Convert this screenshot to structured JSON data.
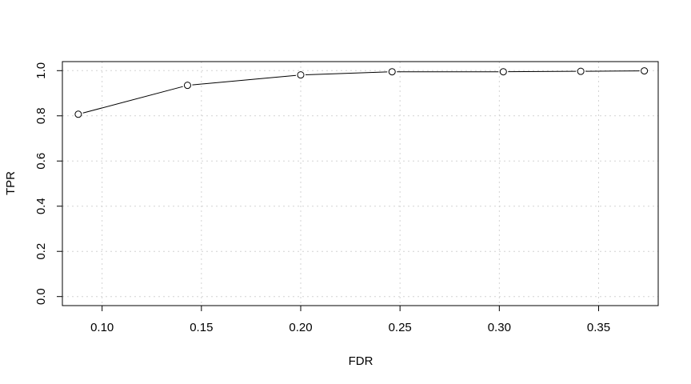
{
  "chart_data": {
    "type": "line",
    "title": "",
    "xlabel": "FDR",
    "ylabel": "TPR",
    "xlim": [
      0.08,
      0.38
    ],
    "ylim": [
      -0.04,
      1.04
    ],
    "xticks": [
      0.1,
      0.15,
      0.2,
      0.25,
      0.3,
      0.35
    ],
    "xtick_labels": [
      "0.10",
      "0.15",
      "0.20",
      "0.25",
      "0.30",
      "0.35"
    ],
    "yticks": [
      0.0,
      0.2,
      0.4,
      0.6,
      0.8,
      1.0
    ],
    "ytick_labels": [
      "0.0",
      "0.2",
      "0.4",
      "0.6",
      "0.8",
      "1.0"
    ],
    "grid": true,
    "series": [
      {
        "x": [
          0.088,
          0.143,
          0.2,
          0.246,
          0.302,
          0.341,
          0.373
        ],
        "y": [
          0.807,
          0.935,
          0.981,
          0.995,
          0.995,
          0.997,
          0.999
        ]
      }
    ]
  }
}
